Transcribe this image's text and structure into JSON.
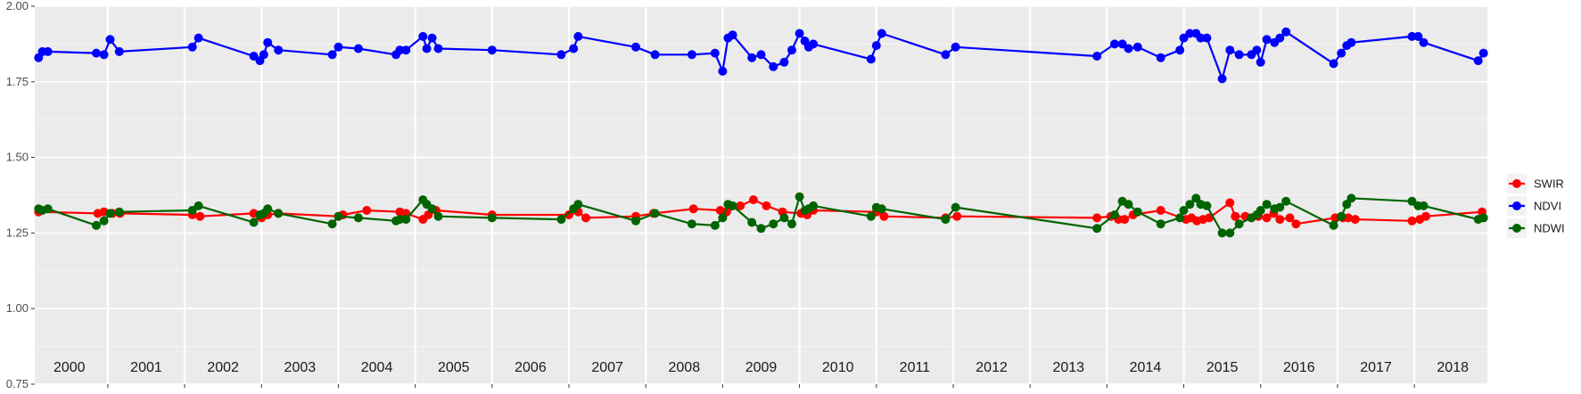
{
  "chart_data": {
    "type": "line",
    "title": "",
    "xlabel": "",
    "ylabel": "",
    "xlim": [
      1999.55,
      2018.45
    ],
    "ylim": [
      0.75,
      2.0
    ],
    "yticks": [
      "0.75",
      "1.00",
      "1.25",
      "1.50",
      "1.75",
      "2.00"
    ],
    "ytick_values": [
      0.75,
      1.0,
      1.25,
      1.5,
      1.75,
      2.0
    ],
    "years": [
      "2000",
      "2001",
      "2002",
      "2003",
      "2004",
      "2005",
      "2006",
      "2007",
      "2008",
      "2009",
      "2010",
      "2011",
      "2012",
      "2013",
      "2014",
      "2015",
      "2016",
      "2017",
      "2018"
    ],
    "grid": true,
    "legend_position": "right",
    "series": [
      {
        "name": "SWIR",
        "color": "#ff0000",
        "points": [
          [
            1999.6,
            1.32
          ],
          [
            2000.37,
            1.315
          ],
          [
            2000.45,
            1.32
          ],
          [
            2000.56,
            1.315
          ],
          [
            2000.66,
            1.315
          ],
          [
            2001.6,
            1.31
          ],
          [
            2001.7,
            1.305
          ],
          [
            2002.4,
            1.315
          ],
          [
            2002.5,
            1.3
          ],
          [
            2002.58,
            1.31
          ],
          [
            2002.72,
            1.315
          ],
          [
            2003.5,
            1.305
          ],
          [
            2003.56,
            1.31
          ],
          [
            2003.87,
            1.325
          ],
          [
            2004.3,
            1.32
          ],
          [
            2004.38,
            1.315
          ],
          [
            2004.6,
            1.295
          ],
          [
            2004.67,
            1.31
          ],
          [
            2004.77,
            1.325
          ],
          [
            2005.5,
            1.31
          ],
          [
            2006.5,
            1.31
          ],
          [
            2006.62,
            1.32
          ],
          [
            2006.72,
            1.3
          ],
          [
            2007.37,
            1.305
          ],
          [
            2007.6,
            1.315
          ],
          [
            2008.12,
            1.33
          ],
          [
            2008.47,
            1.325
          ],
          [
            2008.55,
            1.32
          ],
          [
            2008.73,
            1.34
          ],
          [
            2008.9,
            1.36
          ],
          [
            2009.07,
            1.34
          ],
          [
            2009.28,
            1.32
          ],
          [
            2009.52,
            1.315
          ],
          [
            2009.6,
            1.31
          ],
          [
            2009.68,
            1.325
          ],
          [
            2010.5,
            1.32
          ],
          [
            2010.6,
            1.305
          ],
          [
            2011.4,
            1.3
          ],
          [
            2011.55,
            1.305
          ],
          [
            2013.37,
            1.3
          ],
          [
            2013.55,
            1.305
          ],
          [
            2013.65,
            1.295
          ],
          [
            2013.73,
            1.295
          ],
          [
            2013.84,
            1.31
          ],
          [
            2014.2,
            1.325
          ],
          [
            2014.53,
            1.295
          ],
          [
            2014.6,
            1.3
          ],
          [
            2014.67,
            1.29
          ],
          [
            2014.75,
            1.295
          ],
          [
            2014.83,
            1.3
          ],
          [
            2015.1,
            1.35
          ],
          [
            2015.17,
            1.305
          ],
          [
            2015.3,
            1.305
          ],
          [
            2015.47,
            1.305
          ],
          [
            2015.58,
            1.3
          ],
          [
            2015.67,
            1.315
          ],
          [
            2015.75,
            1.295
          ],
          [
            2015.88,
            1.3
          ],
          [
            2015.96,
            1.28
          ],
          [
            2016.47,
            1.3
          ],
          [
            2016.57,
            1.3
          ],
          [
            2016.64,
            1.3
          ],
          [
            2016.73,
            1.295
          ],
          [
            2017.47,
            1.29
          ],
          [
            2017.57,
            1.295
          ],
          [
            2017.65,
            1.305
          ],
          [
            2018.38,
            1.32
          ]
        ]
      },
      {
        "name": "NDVI",
        "color": "#0000ff",
        "points": [
          [
            1999.6,
            1.83
          ],
          [
            1999.65,
            1.85
          ],
          [
            1999.72,
            1.85
          ],
          [
            2000.35,
            1.845
          ],
          [
            2000.45,
            1.84
          ],
          [
            2000.53,
            1.89
          ],
          [
            2000.65,
            1.85
          ],
          [
            2001.6,
            1.865
          ],
          [
            2001.68,
            1.895
          ],
          [
            2002.4,
            1.835
          ],
          [
            2002.48,
            1.82
          ],
          [
            2002.53,
            1.84
          ],
          [
            2002.58,
            1.88
          ],
          [
            2002.72,
            1.855
          ],
          [
            2003.42,
            1.84
          ],
          [
            2003.5,
            1.865
          ],
          [
            2003.76,
            1.86
          ],
          [
            2004.25,
            1.84
          ],
          [
            2004.3,
            1.855
          ],
          [
            2004.38,
            1.855
          ],
          [
            2004.6,
            1.9
          ],
          [
            2004.65,
            1.86
          ],
          [
            2004.72,
            1.895
          ],
          [
            2004.8,
            1.86
          ],
          [
            2005.5,
            1.855
          ],
          [
            2006.4,
            1.84
          ],
          [
            2006.56,
            1.86
          ],
          [
            2006.62,
            1.9
          ],
          [
            2007.37,
            1.865
          ],
          [
            2007.62,
            1.84
          ],
          [
            2008.1,
            1.84
          ],
          [
            2008.4,
            1.845
          ],
          [
            2008.5,
            1.785
          ],
          [
            2008.57,
            1.895
          ],
          [
            2008.63,
            1.905
          ],
          [
            2008.88,
            1.83
          ],
          [
            2009.0,
            1.84
          ],
          [
            2009.16,
            1.8
          ],
          [
            2009.3,
            1.815
          ],
          [
            2009.4,
            1.855
          ],
          [
            2009.5,
            1.91
          ],
          [
            2009.57,
            1.885
          ],
          [
            2009.62,
            1.865
          ],
          [
            2009.68,
            1.875
          ],
          [
            2010.43,
            1.825
          ],
          [
            2010.5,
            1.87
          ],
          [
            2010.57,
            1.91
          ],
          [
            2011.4,
            1.84
          ],
          [
            2011.53,
            1.865
          ],
          [
            2013.37,
            1.835
          ],
          [
            2013.6,
            1.875
          ],
          [
            2013.7,
            1.875
          ],
          [
            2013.78,
            1.86
          ],
          [
            2013.9,
            1.865
          ],
          [
            2014.2,
            1.83
          ],
          [
            2014.45,
            1.855
          ],
          [
            2014.5,
            1.895
          ],
          [
            2014.58,
            1.91
          ],
          [
            2014.66,
            1.91
          ],
          [
            2014.72,
            1.895
          ],
          [
            2014.8,
            1.895
          ],
          [
            2015.0,
            1.76
          ],
          [
            2015.1,
            1.855
          ],
          [
            2015.22,
            1.84
          ],
          [
            2015.38,
            1.84
          ],
          [
            2015.45,
            1.855
          ],
          [
            2015.5,
            1.815
          ],
          [
            2015.58,
            1.89
          ],
          [
            2015.68,
            1.88
          ],
          [
            2015.75,
            1.895
          ],
          [
            2015.83,
            1.915
          ],
          [
            2016.45,
            1.81
          ],
          [
            2016.55,
            1.845
          ],
          [
            2016.62,
            1.87
          ],
          [
            2016.68,
            1.88
          ],
          [
            2017.47,
            1.9
          ],
          [
            2017.55,
            1.9
          ],
          [
            2017.62,
            1.88
          ],
          [
            2018.33,
            1.82
          ],
          [
            2018.4,
            1.845
          ]
        ]
      },
      {
        "name": "NDWI",
        "color": "#006400",
        "points": [
          [
            1999.6,
            1.33
          ],
          [
            1999.65,
            1.325
          ],
          [
            1999.72,
            1.33
          ],
          [
            2000.35,
            1.275
          ],
          [
            2000.45,
            1.29
          ],
          [
            2000.53,
            1.315
          ],
          [
            2000.65,
            1.32
          ],
          [
            2001.6,
            1.325
          ],
          [
            2001.68,
            1.34
          ],
          [
            2002.4,
            1.285
          ],
          [
            2002.48,
            1.31
          ],
          [
            2002.53,
            1.315
          ],
          [
            2002.58,
            1.33
          ],
          [
            2002.72,
            1.315
          ],
          [
            2003.42,
            1.28
          ],
          [
            2003.5,
            1.305
          ],
          [
            2003.76,
            1.3
          ],
          [
            2004.25,
            1.29
          ],
          [
            2004.3,
            1.295
          ],
          [
            2004.38,
            1.295
          ],
          [
            2004.6,
            1.36
          ],
          [
            2004.65,
            1.345
          ],
          [
            2004.72,
            1.33
          ],
          [
            2004.8,
            1.305
          ],
          [
            2005.5,
            1.3
          ],
          [
            2006.4,
            1.295
          ],
          [
            2006.56,
            1.33
          ],
          [
            2006.62,
            1.345
          ],
          [
            2007.37,
            1.29
          ],
          [
            2007.62,
            1.315
          ],
          [
            2008.1,
            1.28
          ],
          [
            2008.4,
            1.275
          ],
          [
            2008.5,
            1.3
          ],
          [
            2008.57,
            1.345
          ],
          [
            2008.63,
            1.34
          ],
          [
            2008.88,
            1.285
          ],
          [
            2009.0,
            1.265
          ],
          [
            2009.16,
            1.28
          ],
          [
            2009.3,
            1.3
          ],
          [
            2009.4,
            1.28
          ],
          [
            2009.5,
            1.37
          ],
          [
            2009.57,
            1.325
          ],
          [
            2009.62,
            1.33
          ],
          [
            2009.68,
            1.34
          ],
          [
            2010.43,
            1.305
          ],
          [
            2010.5,
            1.335
          ],
          [
            2010.57,
            1.33
          ],
          [
            2011.4,
            1.295
          ],
          [
            2011.53,
            1.335
          ],
          [
            2013.37,
            1.265
          ],
          [
            2013.6,
            1.31
          ],
          [
            2013.7,
            1.355
          ],
          [
            2013.78,
            1.345
          ],
          [
            2013.9,
            1.32
          ],
          [
            2014.2,
            1.28
          ],
          [
            2014.45,
            1.3
          ],
          [
            2014.5,
            1.325
          ],
          [
            2014.58,
            1.345
          ],
          [
            2014.66,
            1.365
          ],
          [
            2014.72,
            1.345
          ],
          [
            2014.8,
            1.34
          ],
          [
            2015.0,
            1.25
          ],
          [
            2015.1,
            1.25
          ],
          [
            2015.22,
            1.28
          ],
          [
            2015.38,
            1.3
          ],
          [
            2015.45,
            1.31
          ],
          [
            2015.5,
            1.325
          ],
          [
            2015.58,
            1.345
          ],
          [
            2015.68,
            1.33
          ],
          [
            2015.75,
            1.335
          ],
          [
            2015.83,
            1.355
          ],
          [
            2016.45,
            1.275
          ],
          [
            2016.55,
            1.305
          ],
          [
            2016.62,
            1.345
          ],
          [
            2016.68,
            1.365
          ],
          [
            2017.47,
            1.355
          ],
          [
            2017.55,
            1.34
          ],
          [
            2017.62,
            1.34
          ],
          [
            2018.33,
            1.295
          ],
          [
            2018.4,
            1.3
          ]
        ]
      }
    ]
  }
}
